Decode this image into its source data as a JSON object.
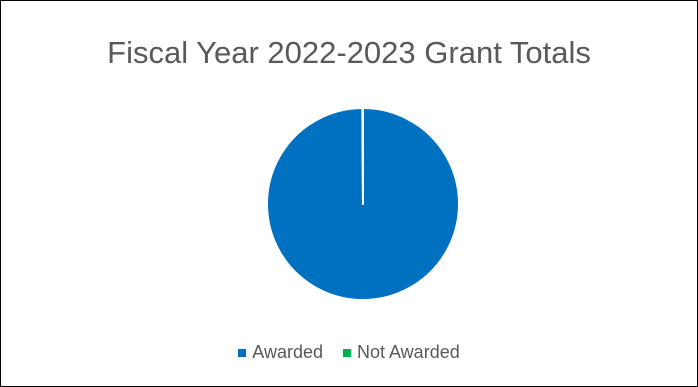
{
  "chart_data": {
    "type": "pie",
    "title": "Fiscal Year 2022-2023 Grant Totals",
    "categories": [
      "Awarded",
      "Not Awarded"
    ],
    "values": [
      99.9,
      0.1
    ],
    "colors": [
      "#0070C0",
      "#00B050"
    ],
    "legend_position": "bottom"
  }
}
